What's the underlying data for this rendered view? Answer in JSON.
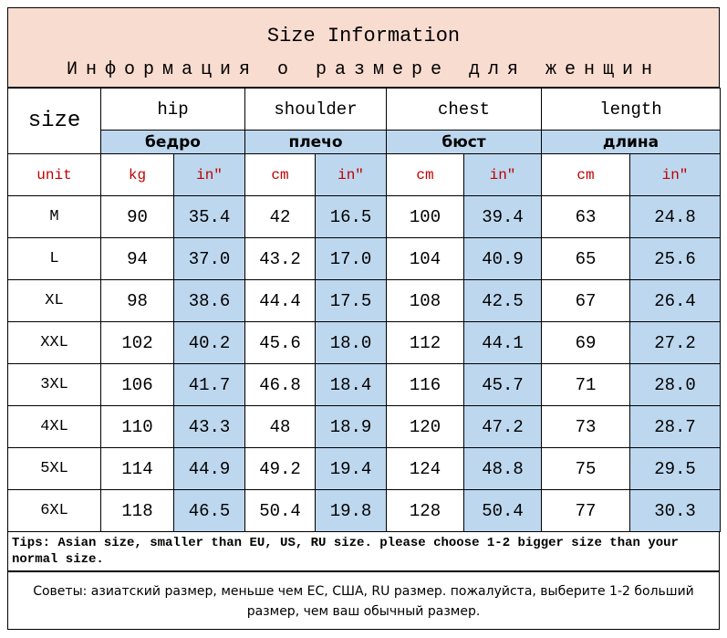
{
  "header": {
    "title": "Size Information",
    "subtitle": "Информация о размере для женщин"
  },
  "table": {
    "size_label": "size",
    "groups": [
      {
        "name": "hip",
        "name_ru": "бедро"
      },
      {
        "name": "shoulder",
        "name_ru": "плечо"
      },
      {
        "name": "chest",
        "name_ru": "бюст"
      },
      {
        "name": "length",
        "name_ru": "длина"
      }
    ],
    "units": [
      "unit",
      "kg",
      "in″",
      "cm",
      "in″",
      "cm",
      "in″",
      "cm",
      "in″"
    ],
    "rows": [
      [
        "M",
        "90",
        "35.4",
        "42",
        "16.5",
        "100",
        "39.4",
        "63",
        "24.8"
      ],
      [
        "L",
        "94",
        "37.0",
        "43.2",
        "17.0",
        "104",
        "40.9",
        "65",
        "25.6"
      ],
      [
        "XL",
        "98",
        "38.6",
        "44.4",
        "17.5",
        "108",
        "42.5",
        "67",
        "26.4"
      ],
      [
        "XXL",
        "102",
        "40.2",
        "45.6",
        "18.0",
        "112",
        "44.1",
        "69",
        "27.2"
      ],
      [
        "3XL",
        "106",
        "41.7",
        "46.8",
        "18.4",
        "116",
        "45.7",
        "71",
        "28.0"
      ],
      [
        "4XL",
        "110",
        "43.3",
        "48",
        "18.9",
        "120",
        "47.2",
        "73",
        "28.7"
      ],
      [
        "5XL",
        "114",
        "44.9",
        "49.2",
        "19.4",
        "124",
        "48.8",
        "75",
        "29.5"
      ],
      [
        "6XL",
        "118",
        "46.5",
        "50.4",
        "19.8",
        "128",
        "50.4",
        "77",
        "30.3"
      ]
    ]
  },
  "tips": {
    "en": "Tips: Asian size, smaller than EU, US, RU size. please choose 1-2 bigger size than your normal size.",
    "ru": "Советы: азиатский размер, меньше чем ЕС, США, RU размер. пожалуйста, выберите 1-2 больший размер, чем ваш обычный размер."
  }
}
